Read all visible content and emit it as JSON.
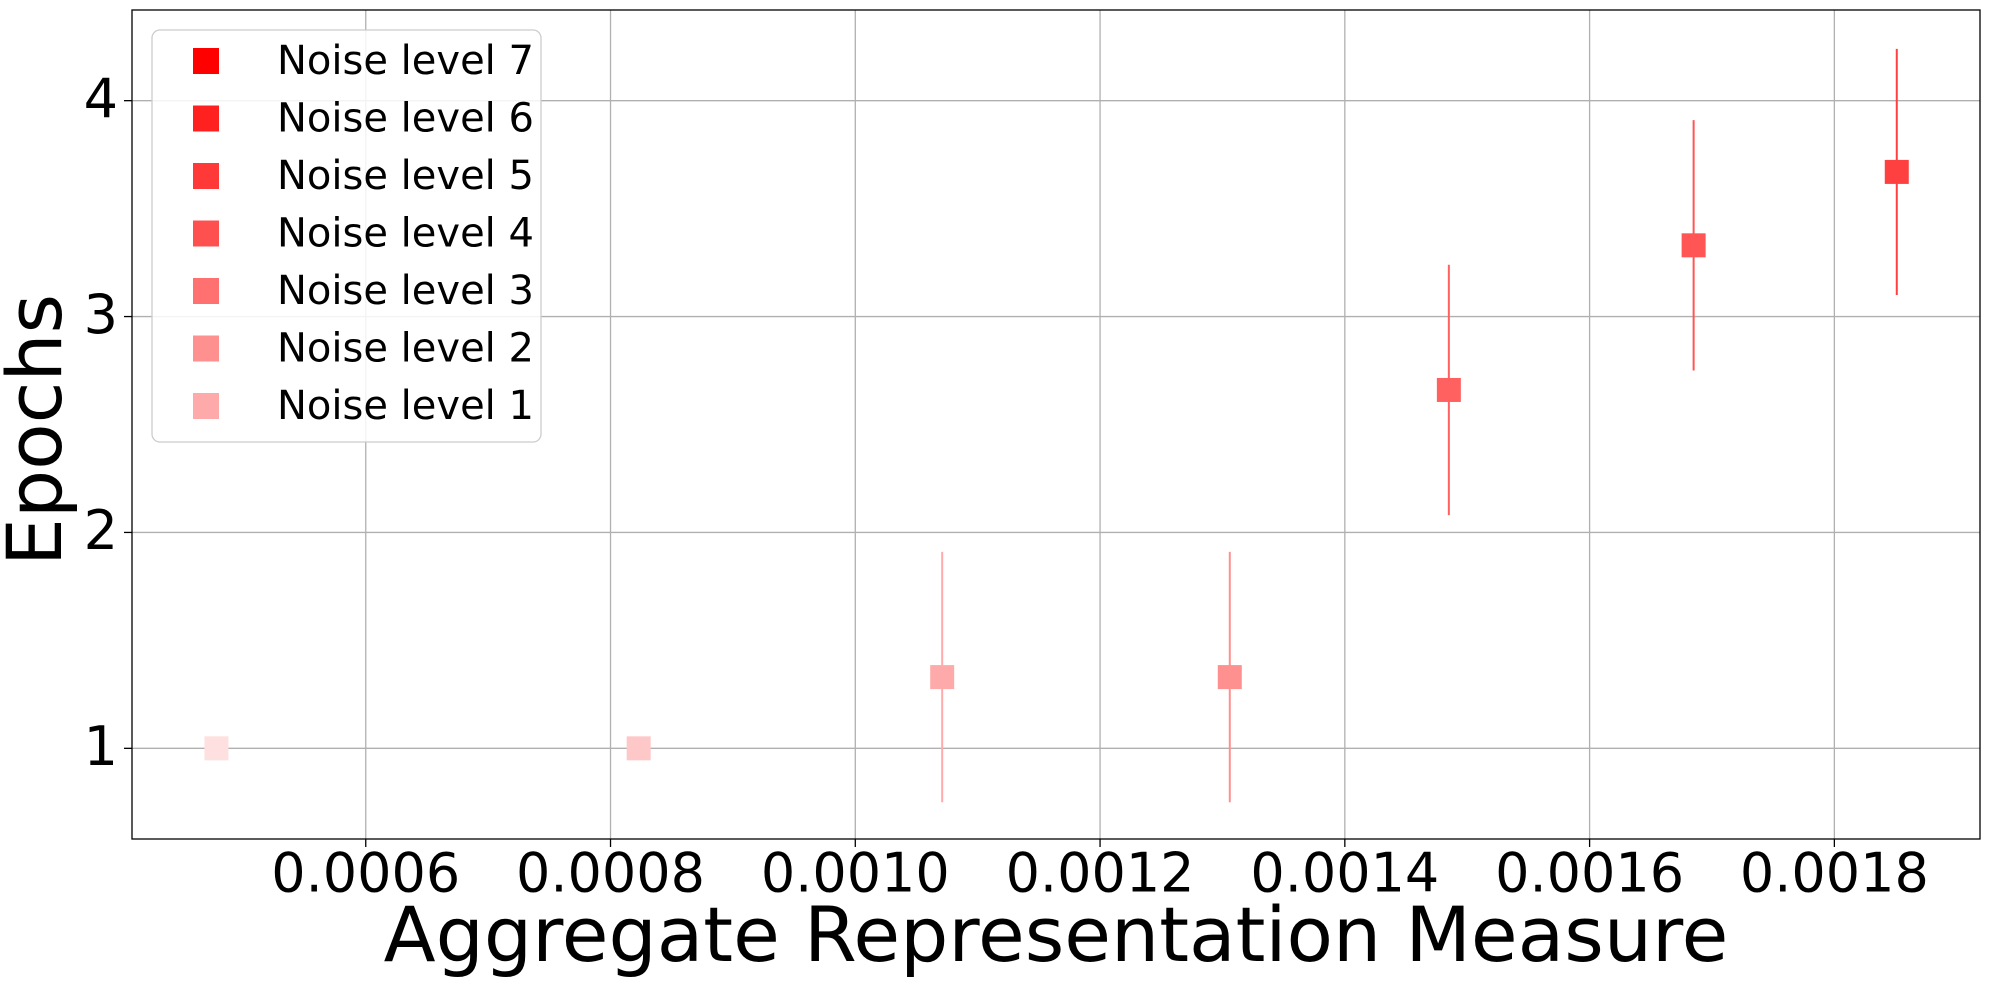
{
  "chart_data": {
    "type": "scatter",
    "x_label": "Aggregate Representation Measure",
    "y_label": "Epochs",
    "xlim": [
      0.000409,
      0.001919
    ],
    "ylim": [
      0.58,
      4.42
    ],
    "xticks": [
      {
        "value": 0.0006,
        "label": "0.0006"
      },
      {
        "value": 0.0008,
        "label": "0.0008"
      },
      {
        "value": 0.001,
        "label": "0.0010"
      },
      {
        "value": 0.0012,
        "label": "0.0012"
      },
      {
        "value": 0.0014,
        "label": "0.0014"
      },
      {
        "value": 0.0016,
        "label": "0.0016"
      },
      {
        "value": 0.0018,
        "label": "0.0018"
      }
    ],
    "yticks": [
      1,
      2,
      3,
      4
    ],
    "grid": true,
    "legend": "upper left",
    "series": [
      {
        "name": "Noise level 7",
        "color": "#ff0000",
        "point_color": "#ff4040",
        "x": [
          0.001851
        ],
        "y": [
          3.67
        ],
        "error": [
          0.57
        ]
      },
      {
        "name": "Noise level 6",
        "color": "#ff2020",
        "point_color": "#ff5555",
        "x": [
          0.001685
        ],
        "y": [
          3.33
        ],
        "error": [
          0.58
        ]
      },
      {
        "name": "Noise level 5",
        "color": "#ff3838",
        "point_color": "#ff6060",
        "x": [
          0.001485
        ],
        "y": [
          2.66
        ],
        "error": [
          0.58
        ]
      },
      {
        "name": "Noise level 4",
        "color": "#ff5050",
        "point_color": "#ff9090",
        "x": [
          0.001306
        ],
        "y": [
          1.33
        ],
        "error": [
          0.58
        ]
      },
      {
        "name": "Noise level 3",
        "color": "#ff7070",
        "point_color": "#ffaaaa",
        "x": [
          0.001071
        ],
        "y": [
          1.33
        ],
        "error": [
          0.58
        ]
      },
      {
        "name": "Noise level 2",
        "color": "#ff9090",
        "point_color": "#ffc8c8",
        "x": [
          0.000823
        ],
        "y": [
          1.0
        ],
        "error": [
          0
        ]
      },
      {
        "name": "Noise level 1",
        "color": "#ffaaaa",
        "point_color": "#ffe0e0",
        "x": [
          0.000478
        ],
        "y": [
          1.0
        ],
        "error": [
          0
        ]
      }
    ]
  }
}
